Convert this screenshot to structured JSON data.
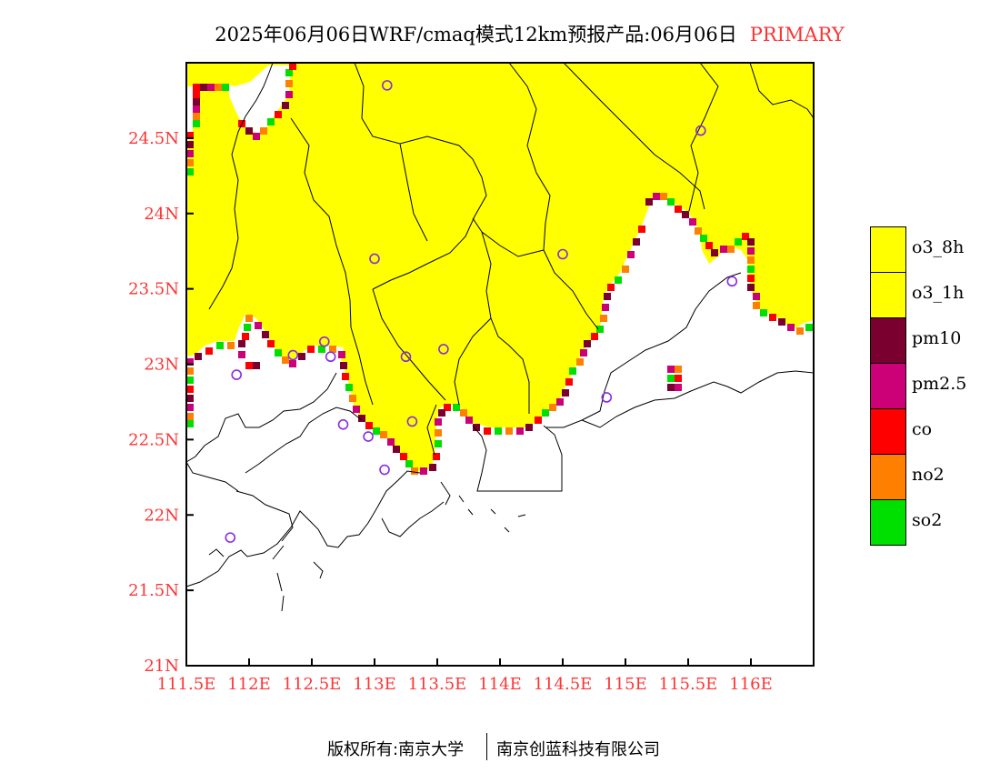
{
  "title": {
    "main": "2025年06月06日WRF/cmaq模式12km预报产品:06月06日",
    "tag": "PRIMARY"
  },
  "map": {
    "lat_min": 21.0,
    "lat_max": 25.0,
    "lon_min": 111.5,
    "lon_max": 116.5,
    "lat_ticks": [
      "21N",
      "21.5N",
      "22N",
      "22.5N",
      "23N",
      "23.5N",
      "24N",
      "24.5N"
    ],
    "lon_ticks": [
      "111.5E",
      "112E",
      "112.5E",
      "113E",
      "113.5E",
      "114E",
      "114.5E",
      "115E",
      "115.5E",
      "116E"
    ],
    "colors": {
      "o3_8h": "#ffff00",
      "o3_1h": "#ffff00",
      "pm10": "#7a0030",
      "pm25": "#cc0077",
      "co": "#ff0000",
      "no2": "#ff8000",
      "so2": "#00e000",
      "station": "#8a2be2",
      "axis_text": "#ff3333",
      "boundary": "#000000"
    },
    "stations": [
      {
        "lon": 113.1,
        "lat": 24.85
      },
      {
        "lon": 115.6,
        "lat": 24.55
      },
      {
        "lon": 113.0,
        "lat": 23.7
      },
      {
        "lon": 114.5,
        "lat": 23.73
      },
      {
        "lon": 115.85,
        "lat": 23.55
      },
      {
        "lon": 112.35,
        "lat": 23.06
      },
      {
        "lon": 112.6,
        "lat": 23.15
      },
      {
        "lon": 112.65,
        "lat": 23.05
      },
      {
        "lon": 113.25,
        "lat": 23.05
      },
      {
        "lon": 113.55,
        "lat": 23.1
      },
      {
        "lon": 111.9,
        "lat": 22.93
      },
      {
        "lon": 112.75,
        "lat": 22.6
      },
      {
        "lon": 112.95,
        "lat": 22.52
      },
      {
        "lon": 113.3,
        "lat": 22.62
      },
      {
        "lon": 113.08,
        "lat": 22.3
      },
      {
        "lon": 114.85,
        "lat": 22.78
      },
      {
        "lon": 111.85,
        "lat": 21.85
      }
    ]
  },
  "legend": [
    {
      "key": "o3_8h",
      "label": "o3_8h",
      "color": "#ffff00"
    },
    {
      "key": "o3_1h",
      "label": "o3_1h",
      "color": "#ffff00"
    },
    {
      "key": "pm10",
      "label": "pm10",
      "color": "#7a0030"
    },
    {
      "key": "pm25",
      "label": "pm2.5",
      "color": "#cc0077"
    },
    {
      "key": "co",
      "label": "co",
      "color": "#ff0000"
    },
    {
      "key": "no2",
      "label": "no2",
      "color": "#ff8000"
    },
    {
      "key": "so2",
      "label": "so2",
      "color": "#00e000"
    }
  ],
  "footer": {
    "left": "版权所有:南京大学",
    "right": "南京创蓝科技有限公司"
  }
}
